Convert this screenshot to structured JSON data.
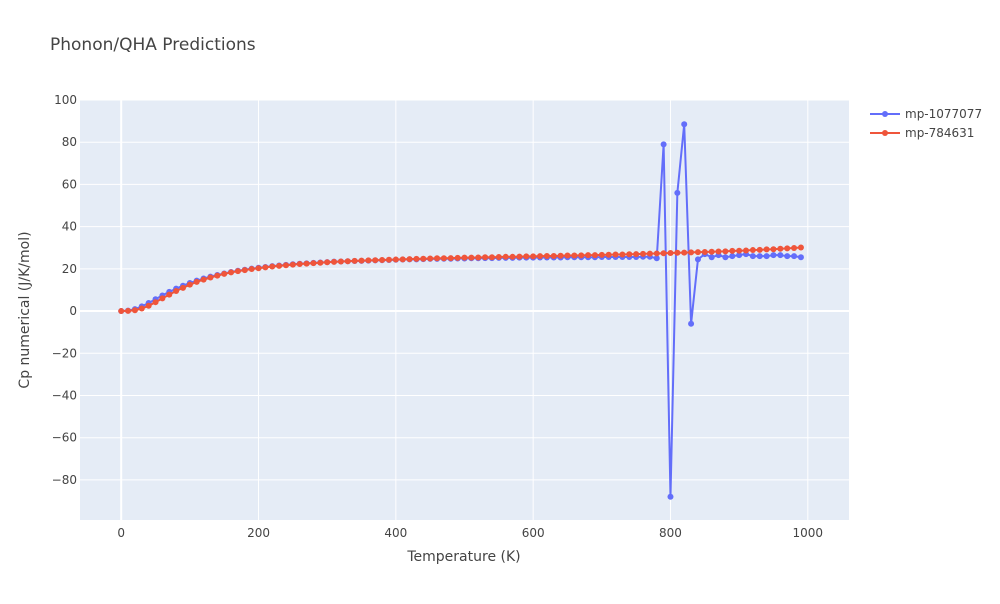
{
  "chart_data": {
    "type": "line",
    "title": "Phonon/QHA Predictions",
    "xlabel": "Temperature (K)",
    "ylabel": "Cp numerical (J/K/mol)",
    "xlim": [
      -60,
      1060
    ],
    "ylim": [
      -99,
      100
    ],
    "xticks": [
      0,
      200,
      400,
      600,
      800,
      1000
    ],
    "xtick_labels": [
      "0",
      "200",
      "400",
      "600",
      "800",
      "1000"
    ],
    "yticks": [
      -80,
      -60,
      -40,
      -20,
      0,
      20,
      40,
      60,
      80,
      100
    ],
    "ytick_labels": [
      "−80",
      "−60",
      "−40",
      "−20",
      "0",
      "20",
      "40",
      "60",
      "80",
      "100"
    ],
    "grid": true,
    "legend_position": "top-right",
    "x": [
      0,
      10,
      20,
      30,
      40,
      50,
      60,
      70,
      80,
      90,
      100,
      110,
      120,
      130,
      140,
      150,
      160,
      170,
      180,
      190,
      200,
      210,
      220,
      230,
      240,
      250,
      260,
      270,
      280,
      290,
      300,
      310,
      320,
      330,
      340,
      350,
      360,
      370,
      380,
      390,
      400,
      410,
      420,
      430,
      440,
      450,
      460,
      470,
      480,
      490,
      500,
      510,
      520,
      530,
      540,
      550,
      560,
      570,
      580,
      590,
      600,
      610,
      620,
      630,
      640,
      650,
      660,
      670,
      680,
      690,
      700,
      710,
      720,
      730,
      740,
      750,
      760,
      770,
      780,
      790,
      800,
      810,
      820,
      830,
      840,
      850,
      860,
      870,
      880,
      890,
      900,
      910,
      920,
      930,
      940,
      950,
      960,
      970,
      980,
      990
    ],
    "series": [
      {
        "name": "mp-1077077",
        "color": "#636efa",
        "values": [
          0.0,
          0.2,
          0.9,
          2.2,
          3.8,
          5.6,
          7.4,
          9.1,
          10.6,
          12.0,
          13.3,
          14.4,
          15.4,
          16.3,
          17.1,
          17.8,
          18.5,
          19.1,
          19.6,
          20.1,
          20.5,
          20.9,
          21.3,
          21.6,
          21.9,
          22.2,
          22.4,
          22.6,
          22.8,
          23.0,
          23.2,
          23.4,
          23.5,
          23.6,
          23.7,
          23.8,
          23.9,
          24.0,
          24.1,
          24.2,
          24.3,
          24.4,
          24.5,
          24.5,
          24.6,
          24.7,
          24.7,
          24.8,
          24.8,
          24.9,
          24.9,
          25.0,
          25.0,
          25.1,
          25.1,
          25.2,
          25.2,
          25.2,
          25.3,
          25.3,
          25.3,
          25.4,
          25.4,
          25.4,
          25.4,
          25.5,
          25.5,
          25.5,
          25.5,
          25.5,
          25.6,
          25.6,
          25.6,
          25.6,
          25.6,
          25.6,
          25.7,
          25.7,
          25.0,
          79.0,
          -88.0,
          56.0,
          88.5,
          -6.0,
          24.5,
          27.0,
          25.5,
          26.5,
          25.5,
          26.0,
          26.5,
          27.0,
          26.0,
          26.0,
          26.0,
          26.5,
          26.5,
          26.0,
          26.0,
          25.5
        ]
      },
      {
        "name": "mp-784631",
        "color": "#ef553b",
        "values": [
          0.0,
          0.1,
          0.4,
          1.2,
          2.5,
          4.2,
          6.0,
          7.8,
          9.5,
          11.0,
          12.5,
          13.8,
          14.9,
          15.9,
          16.8,
          17.6,
          18.3,
          18.9,
          19.4,
          19.9,
          20.3,
          20.7,
          21.1,
          21.4,
          21.7,
          22.0,
          22.3,
          22.5,
          22.7,
          22.9,
          23.1,
          23.3,
          23.5,
          23.6,
          23.8,
          23.9,
          24.0,
          24.1,
          24.2,
          24.3,
          24.4,
          24.5,
          24.6,
          24.7,
          24.8,
          24.9,
          25.0,
          25.0,
          25.1,
          25.2,
          25.3,
          25.3,
          25.4,
          25.5,
          25.5,
          25.6,
          25.7,
          25.7,
          25.8,
          25.9,
          25.9,
          26.0,
          26.1,
          26.1,
          26.2,
          26.3,
          26.3,
          26.4,
          26.5,
          26.5,
          26.6,
          26.7,
          26.8,
          26.8,
          26.9,
          27.0,
          27.1,
          27.2,
          27.3,
          27.4,
          27.5,
          27.6,
          27.7,
          27.8,
          27.9,
          28.0,
          28.1,
          28.2,
          28.3,
          28.5,
          28.6,
          28.7,
          28.9,
          29.0,
          29.2,
          29.3,
          29.5,
          29.7,
          29.9,
          30.1
        ]
      }
    ]
  }
}
